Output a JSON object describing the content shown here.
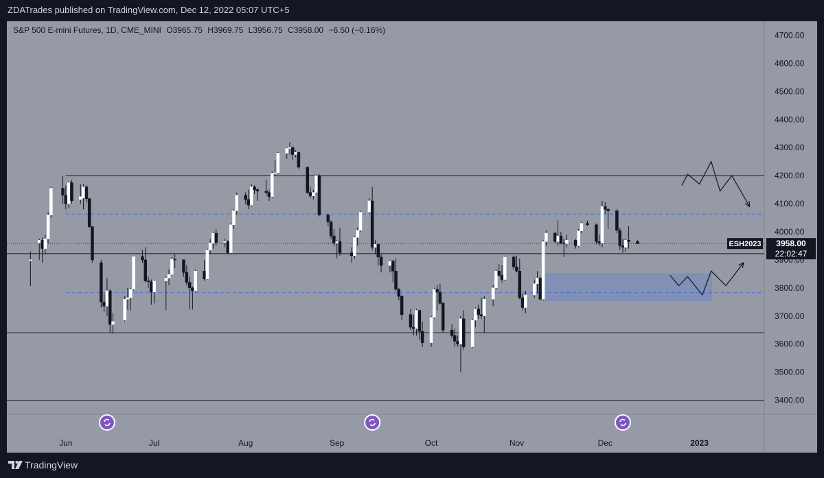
{
  "header": {
    "publish_text": "ZDATrades published on TradingView.com, Dec 12, 2022 05:07 UTC+5"
  },
  "legend": {
    "symbol": "S&P 500 E-mini Futures, 1D, CME_MINI",
    "open": "O3965.75",
    "high": "H3969.75",
    "low": "L3956.75",
    "close": "C3958.00",
    "change": "−6.50 (−0.16%)"
  },
  "footer": {
    "brand": "TradingView"
  },
  "colors": {
    "background": "#959aa5",
    "up_candle": "#ffffff",
    "down_candle": "#131722",
    "dashed_level": "#2962ff",
    "zone": "#5b7bd5",
    "page": "#131722"
  },
  "chart_data": {
    "type": "candlestick",
    "title": "S&P 500 E-mini Futures, 1D, CME_MINI",
    "ylim": [
      3350,
      4750
    ],
    "y_ticks": [
      "4700.00",
      "4600.00",
      "4500.00",
      "4400.00",
      "4300.00",
      "4200.00",
      "4100.00",
      "4000.00",
      "3900.00",
      "3800.00",
      "3700.00",
      "3600.00",
      "3500.00",
      "3400.00"
    ],
    "x_ticks": [
      {
        "label": "Jun",
        "date": "2022-06-01"
      },
      {
        "label": "Jul",
        "date": "2022-07-01"
      },
      {
        "label": "Aug",
        "date": "2022-08-01"
      },
      {
        "label": "Sep",
        "date": "2022-09-01"
      },
      {
        "label": "Oct",
        "date": "2022-10-03"
      },
      {
        "label": "Nov",
        "date": "2022-11-01"
      },
      {
        "label": "Dec",
        "date": "2022-12-01"
      },
      {
        "label": "2023",
        "date": "2023-01-02"
      }
    ],
    "last_price": {
      "symbol": "ESH2023",
      "price": "3958.00",
      "countdown": "22:02:47",
      "value": 3958
    },
    "horizontal_lines": [
      {
        "style": "solid",
        "value": 4200,
        "from": "2022-06-01",
        "to": "extend"
      },
      {
        "style": "solid",
        "value": 3922,
        "from": "start",
        "to": "extend"
      },
      {
        "style": "solid",
        "value": 3640,
        "from": "start",
        "to": "extend"
      },
      {
        "style": "solid",
        "value": 3400,
        "from": "start",
        "to": "extend"
      },
      {
        "style": "dashed",
        "value": 4063,
        "from": "2022-06-01",
        "to": "extend"
      },
      {
        "style": "dashed",
        "value": 3783,
        "from": "2022-06-01",
        "to": "extend"
      },
      {
        "style": "dotted",
        "value": 3958,
        "from": "start",
        "to": "extend"
      }
    ],
    "zone": {
      "x_from": "2022-11-10",
      "x_to": "2023-01-06",
      "y_from": 3755,
      "y_to": 3850
    },
    "projections": [
      {
        "name": "upper",
        "points": [
          [
            "2022-12-27",
            4165
          ],
          [
            "2022-12-29",
            4205
          ],
          [
            "2023-01-02",
            4170
          ],
          [
            "2023-01-06",
            4250
          ],
          [
            "2023-01-09",
            4145
          ],
          [
            "2023-01-13",
            4200
          ],
          [
            "2023-01-19",
            4090
          ]
        ]
      },
      {
        "name": "lower",
        "points": [
          [
            "2022-12-23",
            3845
          ],
          [
            "2022-12-26",
            3808
          ],
          [
            "2022-12-29",
            3840
          ],
          [
            "2023-01-03",
            3775
          ],
          [
            "2023-01-06",
            3860
          ],
          [
            "2023-01-11",
            3808
          ],
          [
            "2023-01-17",
            3890
          ]
        ]
      }
    ],
    "events": [
      {
        "date": "2022-06-15"
      },
      {
        "date": "2022-09-13"
      },
      {
        "date": "2022-12-07"
      }
    ],
    "candles": [
      [
        "2022-05-20",
        3900,
        3930,
        3807,
        3900
      ],
      [
        "2022-05-23",
        3960,
        3975,
        3900,
        3970
      ],
      [
        "2022-05-24",
        3970,
        3980,
        3890,
        3940
      ],
      [
        "2022-05-25",
        3940,
        3990,
        3920,
        3975
      ],
      [
        "2022-05-26",
        3975,
        4070,
        3960,
        4060
      ],
      [
        "2022-05-27",
        4060,
        4160,
        4050,
        4155
      ],
      [
        "2022-05-31",
        4155,
        4200,
        4100,
        4130
      ],
      [
        "2022-06-01",
        4130,
        4165,
        4080,
        4100
      ],
      [
        "2022-06-02",
        4100,
        4180,
        4085,
        4175
      ],
      [
        "2022-06-03",
        4175,
        4185,
        4100,
        4110
      ],
      [
        "2022-06-06",
        4115,
        4170,
        4100,
        4125
      ],
      [
        "2022-06-07",
        4120,
        4170,
        4080,
        4160
      ],
      [
        "2022-06-08",
        4160,
        4165,
        4105,
        4118
      ],
      [
        "2022-06-09",
        4118,
        4120,
        4012,
        4018
      ],
      [
        "2022-06-10",
        4018,
        4020,
        3890,
        3900
      ],
      [
        "2022-06-13",
        3890,
        3900,
        3730,
        3750
      ],
      [
        "2022-06-14",
        3750,
        3780,
        3715,
        3735
      ],
      [
        "2022-06-15",
        3735,
        3835,
        3700,
        3790
      ],
      [
        "2022-06-16",
        3790,
        3795,
        3640,
        3670
      ],
      [
        "2022-06-17",
        3670,
        3710,
        3637,
        3680
      ],
      [
        "2022-06-21",
        3685,
        3770,
        3680,
        3760
      ],
      [
        "2022-06-22",
        3760,
        3800,
        3722,
        3765
      ],
      [
        "2022-06-23",
        3765,
        3800,
        3720,
        3795
      ],
      [
        "2022-06-24",
        3795,
        3915,
        3790,
        3912
      ],
      [
        "2022-06-27",
        3912,
        3935,
        3890,
        3900
      ],
      [
        "2022-06-28",
        3900,
        3945,
        3820,
        3825
      ],
      [
        "2022-06-29",
        3825,
        3840,
        3800,
        3822
      ],
      [
        "2022-06-30",
        3822,
        3830,
        3740,
        3785
      ],
      [
        "2022-07-01",
        3785,
        3830,
        3745,
        3825
      ],
      [
        "2022-07-05",
        3825,
        3840,
        3720,
        3835
      ],
      [
        "2022-07-06",
        3835,
        3865,
        3810,
        3848
      ],
      [
        "2022-07-07",
        3848,
        3910,
        3845,
        3902
      ],
      [
        "2022-07-08",
        3902,
        3920,
        3870,
        3900
      ],
      [
        "2022-07-11",
        3900,
        3902,
        3840,
        3855
      ],
      [
        "2022-07-12",
        3855,
        3880,
        3810,
        3820
      ],
      [
        "2022-07-13",
        3820,
        3840,
        3725,
        3800
      ],
      [
        "2022-07-14",
        3800,
        3805,
        3723,
        3790
      ],
      [
        "2022-07-15",
        3790,
        3865,
        3785,
        3860
      ],
      [
        "2022-07-18",
        3860,
        3900,
        3825,
        3832
      ],
      [
        "2022-07-19",
        3832,
        3940,
        3830,
        3935
      ],
      [
        "2022-07-20",
        3935,
        3975,
        3920,
        3960
      ],
      [
        "2022-07-21",
        3960,
        4000,
        3940,
        3995
      ],
      [
        "2022-07-22",
        3995,
        4010,
        3950,
        3962
      ],
      [
        "2022-07-25",
        3962,
        3975,
        3945,
        3965
      ],
      [
        "2022-07-26",
        3965,
        3970,
        3920,
        3925
      ],
      [
        "2022-07-27",
        3925,
        4030,
        3920,
        4025
      ],
      [
        "2022-07-28",
        4025,
        4080,
        4010,
        4075
      ],
      [
        "2022-07-29",
        4075,
        4140,
        4060,
        4130
      ],
      [
        "2022-08-01",
        4130,
        4140,
        4100,
        4115
      ],
      [
        "2022-08-02",
        4115,
        4150,
        4080,
        4095
      ],
      [
        "2022-08-03",
        4095,
        4170,
        4090,
        4160
      ],
      [
        "2022-08-04",
        4160,
        4165,
        4135,
        4150
      ],
      [
        "2022-08-05",
        4150,
        4155,
        4110,
        4145
      ],
      [
        "2022-08-08",
        4145,
        4185,
        4130,
        4140
      ],
      [
        "2022-08-09",
        4140,
        4150,
        4110,
        4125
      ],
      [
        "2022-08-10",
        4125,
        4215,
        4120,
        4208
      ],
      [
        "2022-08-11",
        4208,
        4255,
        4200,
        4210
      ],
      [
        "2022-08-12",
        4210,
        4285,
        4205,
        4280
      ],
      [
        "2022-08-15",
        4280,
        4300,
        4260,
        4297
      ],
      [
        "2022-08-16",
        4297,
        4320,
        4275,
        4300
      ],
      [
        "2022-08-17",
        4300,
        4305,
        4255,
        4275
      ],
      [
        "2022-08-18",
        4275,
        4290,
        4265,
        4283
      ],
      [
        "2022-08-19",
        4283,
        4285,
        4225,
        4230
      ],
      [
        "2022-08-22",
        4230,
        4232,
        4135,
        4140
      ],
      [
        "2022-08-23",
        4140,
        4160,
        4120,
        4128
      ],
      [
        "2022-08-24",
        4128,
        4150,
        4115,
        4140
      ],
      [
        "2022-08-25",
        4140,
        4205,
        4135,
        4200
      ],
      [
        "2022-08-26",
        4200,
        4205,
        4055,
        4060
      ],
      [
        "2022-08-29",
        4060,
        4065,
        4020,
        4035
      ],
      [
        "2022-08-30",
        4035,
        4040,
        3975,
        3985
      ],
      [
        "2022-08-31",
        3985,
        4010,
        3950,
        3960
      ],
      [
        "2022-09-01",
        3960,
        3970,
        3905,
        3965
      ],
      [
        "2022-09-02",
        3965,
        4015,
        3915,
        3925
      ],
      [
        "2022-09-06",
        3925,
        3945,
        3890,
        3915
      ],
      [
        "2022-09-07",
        3915,
        3985,
        3905,
        3980
      ],
      [
        "2022-09-08",
        3980,
        4015,
        3950,
        4005
      ],
      [
        "2022-09-09",
        4005,
        4075,
        4000,
        4070
      ],
      [
        "2022-09-12",
        4070,
        4120,
        4065,
        4110
      ],
      [
        "2022-09-13",
        4110,
        4160,
        3935,
        3945
      ],
      [
        "2022-09-14",
        3945,
        3970,
        3920,
        3955
      ],
      [
        "2022-09-15",
        3955,
        3960,
        3880,
        3910
      ],
      [
        "2022-09-16",
        3910,
        3920,
        3855,
        3880
      ],
      [
        "2022-09-19",
        3880,
        3900,
        3855,
        3895
      ],
      [
        "2022-09-20",
        3895,
        3900,
        3820,
        3860
      ],
      [
        "2022-09-21",
        3860,
        3905,
        3790,
        3795
      ],
      [
        "2022-09-22",
        3795,
        3800,
        3755,
        3770
      ],
      [
        "2022-09-23",
        3770,
        3775,
        3685,
        3705
      ],
      [
        "2022-09-26",
        3705,
        3725,
        3650,
        3660
      ],
      [
        "2022-09-27",
        3660,
        3705,
        3630,
        3655
      ],
      [
        "2022-09-28",
        3655,
        3725,
        3630,
        3720
      ],
      [
        "2022-09-29",
        3720,
        3722,
        3615,
        3645
      ],
      [
        "2022-09-30",
        3645,
        3680,
        3590,
        3605
      ],
      [
        "2022-10-03",
        3605,
        3700,
        3590,
        3695
      ],
      [
        "2022-10-04",
        3695,
        3800,
        3690,
        3795
      ],
      [
        "2022-10-05",
        3795,
        3810,
        3720,
        3785
      ],
      [
        "2022-10-06",
        3785,
        3815,
        3740,
        3745
      ],
      [
        "2022-10-07",
        3745,
        3750,
        3640,
        3650
      ],
      [
        "2022-10-10",
        3650,
        3670,
        3620,
        3630
      ],
      [
        "2022-10-11",
        3630,
        3655,
        3590,
        3610
      ],
      [
        "2022-10-12",
        3610,
        3630,
        3590,
        3600
      ],
      [
        "2022-10-13",
        3600,
        3700,
        3500,
        3690
      ],
      [
        "2022-10-14",
        3690,
        3720,
        3580,
        3590
      ],
      [
        "2022-10-17",
        3590,
        3690,
        3585,
        3685
      ],
      [
        "2022-10-18",
        3685,
        3730,
        3660,
        3725
      ],
      [
        "2022-10-19",
        3725,
        3740,
        3690,
        3705
      ],
      [
        "2022-10-20",
        3705,
        3765,
        3690,
        3700
      ],
      [
        "2022-10-21",
        3700,
        3770,
        3640,
        3760
      ],
      [
        "2022-10-24",
        3760,
        3810,
        3735,
        3800
      ],
      [
        "2022-10-25",
        3800,
        3865,
        3795,
        3860
      ],
      [
        "2022-10-26",
        3860,
        3885,
        3840,
        3845
      ],
      [
        "2022-10-27",
        3845,
        3880,
        3820,
        3830
      ],
      [
        "2022-10-28",
        3830,
        3915,
        3825,
        3910
      ],
      [
        "2022-10-31",
        3910,
        3915,
        3865,
        3875
      ],
      [
        "2022-11-01",
        3875,
        3915,
        3855,
        3860
      ],
      [
        "2022-11-02",
        3860,
        3905,
        3760,
        3765
      ],
      [
        "2022-11-03",
        3765,
        3780,
        3720,
        3730
      ],
      [
        "2022-11-04",
        3730,
        3790,
        3710,
        3775
      ],
      [
        "2022-11-07",
        3775,
        3830,
        3765,
        3815
      ],
      [
        "2022-11-08",
        3815,
        3860,
        3780,
        3835
      ],
      [
        "2022-11-09",
        3835,
        3840,
        3755,
        3760
      ],
      [
        "2022-11-10",
        3760,
        3970,
        3755,
        3965
      ],
      [
        "2022-11-11",
        3965,
        4005,
        3950,
        3995
      ],
      [
        "2022-11-14",
        3995,
        4000,
        3960,
        3965
      ],
      [
        "2022-11-15",
        3965,
        4040,
        3950,
        3985
      ],
      [
        "2022-11-16",
        3985,
        4000,
        3955,
        3960
      ],
      [
        "2022-11-17",
        3960,
        3975,
        3910,
        3958
      ],
      [
        "2022-11-18",
        3958,
        3990,
        3945,
        3970
      ],
      [
        "2022-11-21",
        3970,
        3975,
        3940,
        3950
      ],
      [
        "2022-11-22",
        3950,
        4010,
        3945,
        4003
      ],
      [
        "2022-11-23",
        4003,
        4035,
        3995,
        4030
      ],
      [
        "2022-11-25",
        4030,
        4040,
        4020,
        4025
      ],
      [
        "2022-11-28",
        4025,
        4030,
        3955,
        3965
      ],
      [
        "2022-11-29",
        3965,
        3990,
        3950,
        3960
      ],
      [
        "2022-11-30",
        3960,
        4110,
        3945,
        4090
      ],
      [
        "2022-12-01",
        4090,
        4105,
        4065,
        4080
      ],
      [
        "2022-12-02",
        4080,
        4085,
        4010,
        4075
      ],
      [
        "2022-12-05",
        4075,
        4080,
        3995,
        4005
      ],
      [
        "2022-12-06",
        4005,
        4015,
        3935,
        3950
      ],
      [
        "2022-12-07",
        3950,
        3975,
        3925,
        3945
      ],
      [
        "2022-12-08",
        3945,
        3975,
        3930,
        3970
      ],
      [
        "2022-12-09",
        3970,
        4020,
        3940,
        3965
      ],
      [
        "2022-12-12",
        3965,
        3970,
        3956,
        3958
      ]
    ]
  }
}
